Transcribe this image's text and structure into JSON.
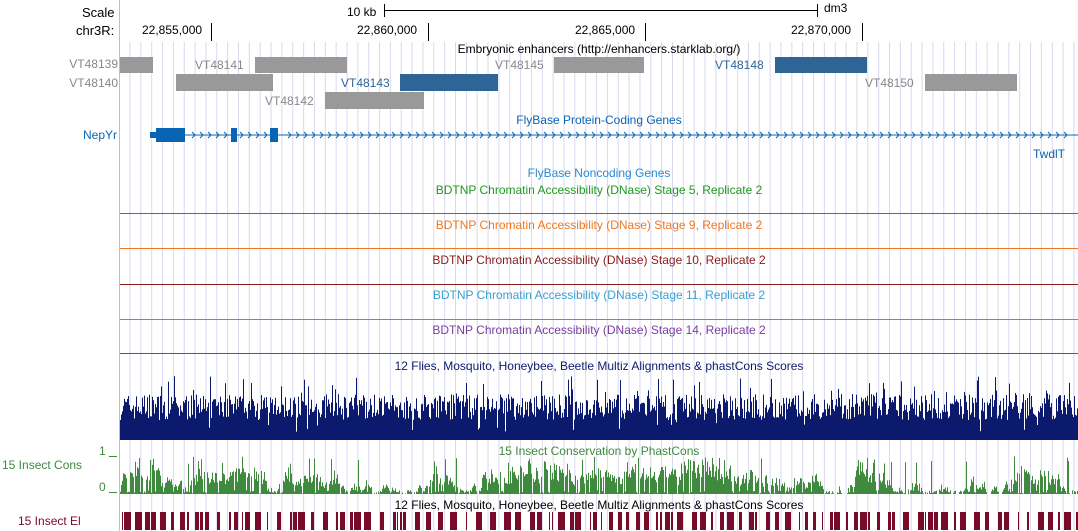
{
  "ruler": {
    "scale_label": "Scale",
    "chrom_label": "chr3R:",
    "scale_text": "10 kb",
    "assembly": "dm3",
    "positions": [
      "22,855,000",
      "22,860,000",
      "22,865,000",
      "22,870,000"
    ]
  },
  "tracks": {
    "enhancers": {
      "title": "Embryonic enhancers (http://enhancers.starklab.org/)",
      "items": [
        "VT48139",
        "VT48140",
        "VT48141",
        "VT48142",
        "VT48143",
        "VT48145",
        "VT48148",
        "VT48150"
      ],
      "colors": {
        "gray": "#999999",
        "blue": "#2e6597"
      }
    },
    "genes": {
      "title": "FlyBase Protein-Coding Genes",
      "gene_left": "NepYr",
      "gene_right": "TwdlT",
      "color": "#0a64b4"
    },
    "noncoding": {
      "title": "FlyBase Noncoding Genes",
      "color": "#2a8bd1"
    },
    "dnase": [
      {
        "title": "BDTNP Chromatin Accessibility (DNase) Stage 5, Replicate 2",
        "color": "#1e9a1e"
      },
      {
        "title": "BDTNP Chromatin Accessibility (DNase) Stage 9, Replicate 2",
        "color": "#f07820"
      },
      {
        "title": "BDTNP Chromatin Accessibility (DNase) Stage 10, Replicate 2",
        "color": "#8b1a1a"
      },
      {
        "title": "BDTNP Chromatin Accessibility (DNase) Stage 11, Replicate 2",
        "color": "#3aa0d0"
      },
      {
        "title": "BDTNP Chromatin Accessibility (DNase) Stage 14, Replicate 2",
        "color": "#7a3ca0"
      }
    ],
    "multiz": {
      "title": "12 Flies, Mosquito, Honeybee, Beetle Multiz Alignments & phastCons Scores",
      "color": "#0c1a6e"
    },
    "cons": {
      "title": "15 Insect Conservation by PhastCons",
      "label": "15 Insect Cons",
      "max": "1",
      "min": "0",
      "color": "#3f8a3f"
    },
    "elements": {
      "title": "12 Flies, Mosquito, Honeybee, Beetle Multiz Alignments & phastCons Scores",
      "label": "15 Insect El",
      "color": "#7a0a2a"
    }
  }
}
